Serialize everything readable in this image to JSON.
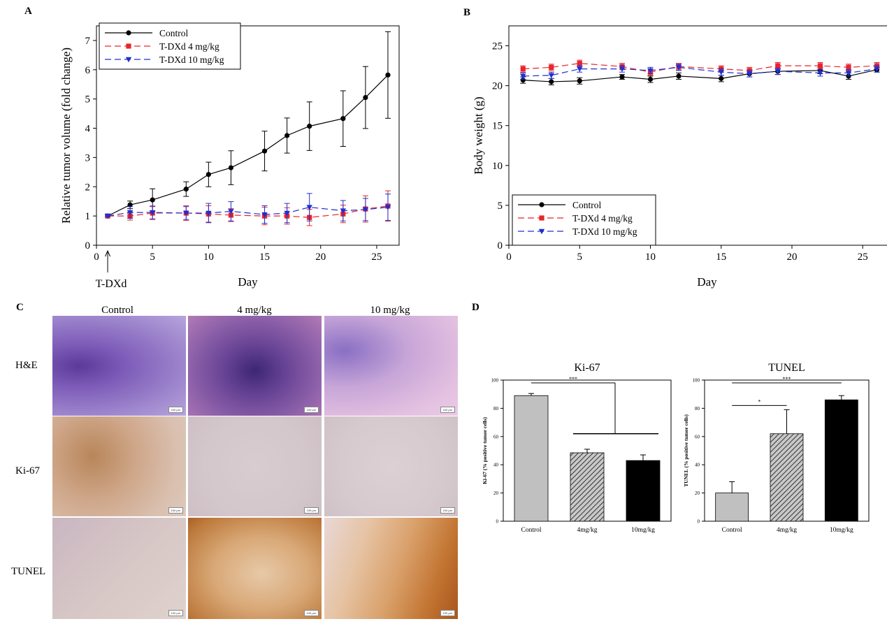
{
  "panels": {
    "A": "A",
    "B": "B",
    "C": "C",
    "D": "D"
  },
  "colors": {
    "control": "#000000",
    "dose4": "#e8242c",
    "dose10": "#1f2fd1",
    "bar_control": "#c0c0c0",
    "bar_4": "#8a8a8a",
    "bar_10": "#000000"
  },
  "chart_data": [
    {
      "id": "A",
      "type": "line",
      "title": "",
      "xlabel": "Day",
      "ylabel": "Relative tumor volume (fold change)",
      "xlim": [
        0,
        27
      ],
      "ylim": [
        0,
        7.5
      ],
      "xticks": [
        0,
        5,
        10,
        15,
        20,
        25
      ],
      "yticks": [
        0,
        1,
        2,
        3,
        4,
        5,
        6,
        7
      ],
      "annotation": "T-DXd",
      "annotation_x": 1,
      "legend_position": "top-left",
      "series": [
        {
          "name": "Control",
          "x": [
            1,
            3,
            5,
            8,
            10,
            12,
            15,
            17,
            19,
            22,
            24,
            26
          ],
          "y": [
            1.0,
            1.38,
            1.55,
            1.92,
            2.42,
            2.65,
            3.22,
            3.75,
            4.07,
            4.33,
            5.05,
            5.82
          ],
          "err": [
            0.03,
            0.13,
            0.38,
            0.25,
            0.42,
            0.58,
            0.68,
            0.6,
            0.83,
            0.95,
            1.06,
            1.48
          ]
        },
        {
          "name": "T-DXd 4 mg/kg",
          "x": [
            1,
            3,
            5,
            8,
            10,
            12,
            15,
            17,
            19,
            22,
            24,
            26
          ],
          "y": [
            1.0,
            1.0,
            1.1,
            1.1,
            1.07,
            1.03,
            1.0,
            1.0,
            0.95,
            1.07,
            1.24,
            1.34
          ],
          "err": [
            0.03,
            0.14,
            0.22,
            0.25,
            0.28,
            0.22,
            0.3,
            0.28,
            0.28,
            0.3,
            0.45,
            0.52
          ]
        },
        {
          "name": "T-DXd 10 mg/kg",
          "x": [
            1,
            3,
            5,
            8,
            10,
            12,
            15,
            17,
            19,
            22,
            24,
            26
          ],
          "y": [
            1.0,
            1.12,
            1.12,
            1.1,
            1.1,
            1.16,
            1.05,
            1.1,
            1.3,
            1.18,
            1.22,
            1.3
          ],
          "err": [
            0.03,
            0.2,
            0.22,
            0.22,
            0.33,
            0.33,
            0.3,
            0.33,
            0.47,
            0.35,
            0.38,
            0.45
          ]
        }
      ]
    },
    {
      "id": "B",
      "type": "line",
      "title": "",
      "xlabel": "Day",
      "ylabel": "Body weight (g)",
      "xlim": [
        0,
        28
      ],
      "ylim": [
        0,
        27.5
      ],
      "xticks": [
        0,
        5,
        10,
        15,
        20,
        25
      ],
      "yticks": [
        0,
        5,
        10,
        15,
        20,
        25
      ],
      "legend_position": "bottom-left",
      "series": [
        {
          "name": "Control",
          "x": [
            1,
            3,
            5,
            8,
            10,
            12,
            15,
            17,
            19,
            22,
            24,
            26
          ],
          "y": [
            20.7,
            20.5,
            20.6,
            21.1,
            20.8,
            21.2,
            20.9,
            21.5,
            21.8,
            21.9,
            21.2,
            22.0
          ],
          "err": [
            0.4,
            0.4,
            0.4,
            0.3,
            0.4,
            0.4,
            0.4,
            0.4,
            0.4,
            0.4,
            0.4,
            0.3
          ]
        },
        {
          "name": "T-DXd 4 mg/kg",
          "x": [
            1,
            3,
            5,
            8,
            10,
            12,
            15,
            17,
            19,
            22,
            24,
            26
          ],
          "y": [
            22.1,
            22.3,
            22.8,
            22.4,
            21.7,
            22.4,
            22.1,
            21.9,
            22.5,
            22.5,
            22.3,
            22.5
          ],
          "err": [
            0.4,
            0.4,
            0.4,
            0.4,
            0.4,
            0.4,
            0.4,
            0.4,
            0.4,
            0.4,
            0.4,
            0.4
          ]
        },
        {
          "name": "T-DXd 10 mg/kg",
          "x": [
            1,
            3,
            5,
            8,
            10,
            12,
            15,
            17,
            19,
            22,
            24,
            26
          ],
          "y": [
            21.2,
            21.3,
            22.1,
            22.1,
            21.9,
            22.3,
            21.7,
            21.5,
            21.8,
            21.6,
            21.6,
            22.1
          ],
          "err": [
            0.4,
            0.4,
            0.4,
            0.4,
            0.4,
            0.4,
            0.4,
            0.4,
            0.4,
            0.4,
            0.4,
            0.4
          ]
        }
      ]
    },
    {
      "id": "D1",
      "type": "bar",
      "title": "Ki-67",
      "xlabel": "",
      "ylabel": "Ki-67 (% positive tumor cells)",
      "categories": [
        "Control",
        "4mg/kg",
        "10mg/kg"
      ],
      "values": [
        89,
        48.5,
        43
      ],
      "err": [
        1.5,
        2.5,
        4
      ],
      "ylim": [
        0,
        100
      ],
      "yticks": [
        0,
        20,
        40,
        60,
        80,
        100
      ],
      "significance": [
        {
          "label": "***",
          "from": 0,
          "to": [
            1,
            2
          ]
        }
      ]
    },
    {
      "id": "D2",
      "type": "bar",
      "title": "TUNEL",
      "xlabel": "",
      "ylabel": "TUNEL (% positive tumor cells)",
      "categories": [
        "Control",
        "4mg/kg",
        "10mg/kg"
      ],
      "values": [
        20,
        62,
        86
      ],
      "err": [
        8,
        17,
        3
      ],
      "ylim": [
        0,
        100
      ],
      "yticks": [
        0,
        20,
        40,
        60,
        80,
        100
      ],
      "significance": [
        {
          "label": "*",
          "from": 0,
          "to": 1
        },
        {
          "label": "***",
          "from": 0,
          "to": 2
        }
      ]
    }
  ],
  "histology": {
    "columns": [
      "Control",
      "4 mg/kg",
      "10 mg/kg"
    ],
    "rows": [
      "H&E",
      "Ki-67",
      "TUNEL"
    ],
    "scale_label": "100 μm"
  }
}
